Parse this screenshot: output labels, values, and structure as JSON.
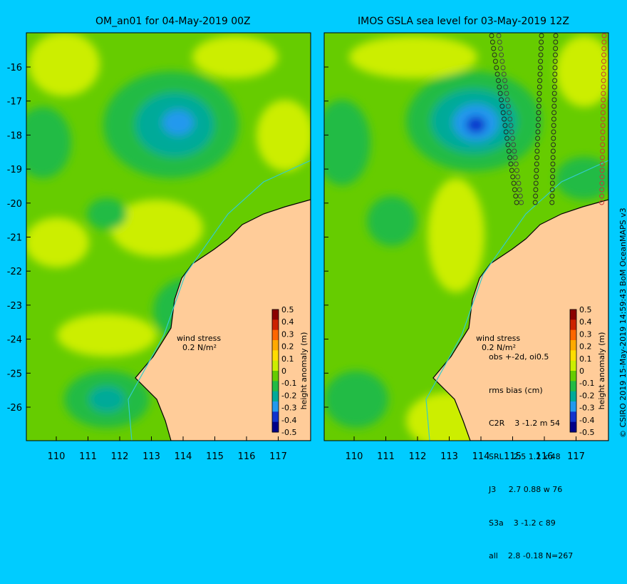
{
  "left_panel": {
    "title": "OM_an01 for 04-May-2019 00Z",
    "wind_label_1": "wind stress",
    "wind_label_2": "0.2 N/m²"
  },
  "right_panel": {
    "title": "IMOS GSLA sea level  for 03-May-2019 12Z",
    "stats": {
      "header": "obs +-2d, oi0.5",
      "subheader": "rms bias (cm)",
      "rows": [
        "C2R    3 -1.2 m 54",
        "SRL    2.5 1.2 k 48",
        "J3     2.7 0.88 w 76",
        "S3a    3 -1.2 c 89",
        "all    2.8 -0.18 N=267"
      ]
    },
    "wind_label_1": "wind stress",
    "wind_label_2": "0.2 N/m²"
  },
  "colorbar": {
    "label": "height anomaly (m)",
    "ticks": [
      "0.5",
      "0.4",
      "0.3",
      "0.2",
      "0.1",
      "0",
      "-0.1",
      "-0.2",
      "-0.3",
      "-0.4",
      "-0.5"
    ],
    "colors": [
      "#8b0000",
      "#cc2200",
      "#ff6600",
      "#ffaa00",
      "#ffdd00",
      "#ccee00",
      "#66cc00",
      "#22bb44",
      "#00aa99",
      "#2299ee",
      "#1133cc",
      "#000088"
    ]
  },
  "axes": {
    "lon_ticks": [
      "110",
      "111",
      "112",
      "113",
      "114",
      "115",
      "116",
      "117"
    ],
    "lat_ticks": [
      "-16",
      "-17",
      "-18",
      "-19",
      "-20",
      "-21",
      "-22",
      "-23",
      "-24",
      "-25",
      "-26"
    ]
  },
  "credit": "© CSIRO 2019   15-May-2019 14:59:43 BoM OceanMAPS v3"
}
